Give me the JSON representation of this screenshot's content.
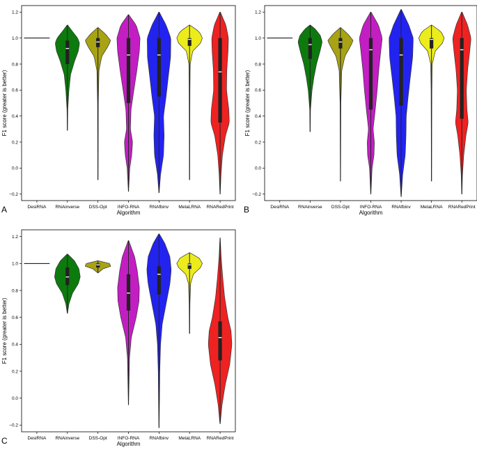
{
  "figure": {
    "panel_labels": [
      "A",
      "B",
      "C"
    ]
  },
  "chart_data": [
    {
      "type": "violin",
      "panel": "A",
      "xlabel": "Algorithm",
      "ylabel": "F1 score (greater is better)",
      "ylim": [
        -0.25,
        1.25
      ],
      "yticks": [
        -0.2,
        0.0,
        0.2,
        0.4,
        0.6,
        0.8,
        1.0,
        1.2
      ],
      "ytick_labels": [
        "−0.2",
        "0.0",
        "0.2",
        "0.4",
        "0.6",
        "0.8",
        "1.0",
        "1.2"
      ],
      "categories": [
        "DesiRNA",
        "RNAinverse",
        "DSS-Opt",
        "INFO-RNA",
        "RNAfbinv",
        "MetaLRNA",
        "RNARedPrint"
      ],
      "colors": [
        "#000000",
        "#0d7a0d",
        "#a8a313",
        "#c31ec3",
        "#2323f0",
        "#ecec1c",
        "#ef2222"
      ],
      "violins": [
        {
          "min": 1.0,
          "max": 1.0,
          "q1": 1.0,
          "median": 1.0,
          "q3": 1.0,
          "degenerate": true
        },
        {
          "min": 0.29,
          "max": 1.1,
          "q1": 0.8,
          "median": 0.92,
          "q3": 0.98,
          "density": [
            [
              0.29,
              0.01
            ],
            [
              0.45,
              0.03
            ],
            [
              0.6,
              0.12
            ],
            [
              0.72,
              0.25
            ],
            [
              0.82,
              0.55
            ],
            [
              0.9,
              0.85
            ],
            [
              0.96,
              0.95
            ],
            [
              1.0,
              0.8
            ],
            [
              1.05,
              0.4
            ],
            [
              1.1,
              0.02
            ]
          ]
        },
        {
          "min": -0.09,
          "max": 1.08,
          "q1": 0.93,
          "median": 0.97,
          "q3": 1.0,
          "density": [
            [
              -0.09,
              0.01
            ],
            [
              0.2,
              0.02
            ],
            [
              0.5,
              0.03
            ],
            [
              0.75,
              0.08
            ],
            [
              0.86,
              0.3
            ],
            [
              0.93,
              0.75
            ],
            [
              0.98,
              1.0
            ],
            [
              1.03,
              0.6
            ],
            [
              1.08,
              0.03
            ]
          ]
        },
        {
          "min": -0.18,
          "max": 1.18,
          "q1": 0.5,
          "median": 0.87,
          "q3": 1.0,
          "density": [
            [
              -0.18,
              0.01
            ],
            [
              0.0,
              0.1
            ],
            [
              0.1,
              0.25
            ],
            [
              0.2,
              0.32
            ],
            [
              0.3,
              0.15
            ],
            [
              0.45,
              0.2
            ],
            [
              0.6,
              0.42
            ],
            [
              0.75,
              0.65
            ],
            [
              0.9,
              0.85
            ],
            [
              1.0,
              0.9
            ],
            [
              1.1,
              0.6
            ],
            [
              1.18,
              0.02
            ]
          ]
        },
        {
          "min": -0.19,
          "max": 1.2,
          "q1": 0.55,
          "median": 0.87,
          "q3": 1.0,
          "density": [
            [
              -0.19,
              0.01
            ],
            [
              -0.05,
              0.12
            ],
            [
              0.1,
              0.35
            ],
            [
              0.25,
              0.4
            ],
            [
              0.4,
              0.35
            ],
            [
              0.55,
              0.55
            ],
            [
              0.7,
              0.72
            ],
            [
              0.85,
              0.9
            ],
            [
              1.0,
              0.92
            ],
            [
              1.1,
              0.55
            ],
            [
              1.2,
              0.02
            ]
          ]
        },
        {
          "min": -0.09,
          "max": 1.1,
          "q1": 0.94,
          "median": 0.99,
          "q3": 1.0,
          "density": [
            [
              -0.09,
              0.01
            ],
            [
              0.3,
              0.02
            ],
            [
              0.6,
              0.03
            ],
            [
              0.8,
              0.05
            ],
            [
              0.9,
              0.25
            ],
            [
              0.96,
              0.85
            ],
            [
              1.0,
              1.0
            ],
            [
              1.05,
              0.75
            ],
            [
              1.1,
              0.02
            ]
          ]
        },
        {
          "min": -0.2,
          "max": 1.2,
          "q1": 0.35,
          "median": 0.74,
          "q3": 1.0,
          "density": [
            [
              -0.2,
              0.01
            ],
            [
              -0.05,
              0.07
            ],
            [
              0.1,
              0.18
            ],
            [
              0.25,
              0.42
            ],
            [
              0.35,
              0.72
            ],
            [
              0.45,
              0.68
            ],
            [
              0.6,
              0.5
            ],
            [
              0.75,
              0.52
            ],
            [
              0.9,
              0.62
            ],
            [
              1.0,
              0.65
            ],
            [
              1.1,
              0.45
            ],
            [
              1.2,
              0.02
            ]
          ]
        }
      ]
    },
    {
      "type": "violin",
      "panel": "B",
      "xlabel": "Algorithm",
      "ylabel": "F1 score (greater is better)",
      "ylim": [
        -0.25,
        1.25
      ],
      "yticks": [
        -0.2,
        0.0,
        0.2,
        0.4,
        0.6,
        0.8,
        1.0,
        1.2
      ],
      "ytick_labels": [
        "−0.2",
        "0.0",
        "0.2",
        "0.4",
        "0.6",
        "0.8",
        "1.0",
        "1.2"
      ],
      "categories": [
        "DesiRNA",
        "RNAinverse",
        "DSS-Opt",
        "INFO-RNA",
        "RNAfbinv",
        "MetaLRNA",
        "RNARedPrint"
      ],
      "colors": [
        "#000000",
        "#0d7a0d",
        "#a8a313",
        "#c31ec3",
        "#2323f0",
        "#ecec1c",
        "#ef2222"
      ],
      "violins": [
        {
          "min": 1.0,
          "max": 1.0,
          "q1": 1.0,
          "median": 1.0,
          "q3": 1.0,
          "degenerate": true
        },
        {
          "min": 0.28,
          "max": 1.1,
          "q1": 0.84,
          "median": 0.95,
          "q3": 1.0,
          "density": [
            [
              0.28,
              0.01
            ],
            [
              0.45,
              0.03
            ],
            [
              0.6,
              0.15
            ],
            [
              0.7,
              0.3
            ],
            [
              0.8,
              0.5
            ],
            [
              0.9,
              0.78
            ],
            [
              0.97,
              0.95
            ],
            [
              1.02,
              0.8
            ],
            [
              1.07,
              0.4
            ],
            [
              1.1,
              0.02
            ]
          ]
        },
        {
          "min": -0.1,
          "max": 1.08,
          "q1": 0.92,
          "median": 0.97,
          "q3": 1.0,
          "density": [
            [
              -0.1,
              0.01
            ],
            [
              0.2,
              0.02
            ],
            [
              0.5,
              0.03
            ],
            [
              0.75,
              0.1
            ],
            [
              0.86,
              0.35
            ],
            [
              0.93,
              0.75
            ],
            [
              0.98,
              1.0
            ],
            [
              1.03,
              0.6
            ],
            [
              1.08,
              0.03
            ]
          ]
        },
        {
          "min": -0.2,
          "max": 1.2,
          "q1": 0.45,
          "median": 0.91,
          "q3": 1.0,
          "density": [
            [
              -0.2,
              0.01
            ],
            [
              0.0,
              0.1
            ],
            [
              0.1,
              0.25
            ],
            [
              0.2,
              0.28
            ],
            [
              0.3,
              0.18
            ],
            [
              0.45,
              0.35
            ],
            [
              0.6,
              0.5
            ],
            [
              0.75,
              0.62
            ],
            [
              0.9,
              0.78
            ],
            [
              1.0,
              0.9
            ],
            [
              1.1,
              0.6
            ],
            [
              1.2,
              0.02
            ]
          ]
        },
        {
          "min": -0.22,
          "max": 1.22,
          "q1": 0.48,
          "median": 0.87,
          "q3": 1.0,
          "density": [
            [
              -0.22,
              0.01
            ],
            [
              -0.05,
              0.12
            ],
            [
              0.1,
              0.32
            ],
            [
              0.25,
              0.38
            ],
            [
              0.4,
              0.4
            ],
            [
              0.55,
              0.55
            ],
            [
              0.7,
              0.72
            ],
            [
              0.85,
              0.9
            ],
            [
              1.0,
              0.95
            ],
            [
              1.1,
              0.6
            ],
            [
              1.22,
              0.02
            ]
          ]
        },
        {
          "min": -0.1,
          "max": 1.1,
          "q1": 0.92,
          "median": 0.99,
          "q3": 1.0,
          "density": [
            [
              -0.1,
              0.01
            ],
            [
              0.3,
              0.02
            ],
            [
              0.6,
              0.03
            ],
            [
              0.8,
              0.06
            ],
            [
              0.9,
              0.3
            ],
            [
              0.96,
              0.85
            ],
            [
              1.0,
              1.0
            ],
            [
              1.05,
              0.75
            ],
            [
              1.1,
              0.02
            ]
          ]
        },
        {
          "min": -0.2,
          "max": 1.2,
          "q1": 0.38,
          "median": 0.91,
          "q3": 1.0,
          "density": [
            [
              -0.2,
              0.01
            ],
            [
              -0.05,
              0.05
            ],
            [
              0.1,
              0.15
            ],
            [
              0.25,
              0.32
            ],
            [
              0.35,
              0.5
            ],
            [
              0.45,
              0.4
            ],
            [
              0.6,
              0.35
            ],
            [
              0.75,
              0.45
            ],
            [
              0.9,
              0.62
            ],
            [
              1.0,
              0.72
            ],
            [
              1.1,
              0.45
            ],
            [
              1.2,
              0.02
            ]
          ]
        }
      ]
    },
    {
      "type": "violin",
      "panel": "C",
      "xlabel": "Algorithm",
      "ylabel": "F1 score (greater is better)",
      "ylim": [
        -0.25,
        1.25
      ],
      "yticks": [
        -0.2,
        0.0,
        0.2,
        0.4,
        0.6,
        0.8,
        1.0,
        1.2
      ],
      "ytick_labels": [
        "−0.2",
        "0.0",
        "0.2",
        "0.4",
        "0.6",
        "0.8",
        "1.0",
        "1.2"
      ],
      "categories": [
        "DesiRNA",
        "RNAinverse",
        "DSS-Opt",
        "INFO-RNA",
        "RNAfbinv",
        "MetaLRNA",
        "RNARedPrint"
      ],
      "colors": [
        "#000000",
        "#0d7a0d",
        "#a8a313",
        "#c31ec3",
        "#2323f0",
        "#ecec1c",
        "#ef2222"
      ],
      "violins": [
        {
          "min": 1.0,
          "max": 1.0,
          "q1": 1.0,
          "median": 1.0,
          "q3": 1.0,
          "degenerate": true
        },
        {
          "min": 0.63,
          "max": 1.07,
          "q1": 0.84,
          "median": 0.9,
          "q3": 0.97,
          "density": [
            [
              0.63,
              0.01
            ],
            [
              0.7,
              0.12
            ],
            [
              0.78,
              0.4
            ],
            [
              0.85,
              0.85
            ],
            [
              0.9,
              1.0
            ],
            [
              0.96,
              0.9
            ],
            [
              1.02,
              0.55
            ],
            [
              1.07,
              0.02
            ]
          ]
        },
        {
          "min": 0.93,
          "max": 1.02,
          "q1": 0.97,
          "median": 0.99,
          "q3": 1.0,
          "density": [
            [
              0.93,
              0.01
            ],
            [
              0.96,
              0.4
            ],
            [
              0.98,
              1.0
            ],
            [
              1.0,
              0.9
            ],
            [
              1.02,
              0.05
            ]
          ]
        },
        {
          "min": -0.05,
          "max": 1.17,
          "q1": 0.65,
          "median": 0.78,
          "q3": 0.92,
          "density": [
            [
              -0.05,
              0.01
            ],
            [
              0.1,
              0.04
            ],
            [
              0.3,
              0.08
            ],
            [
              0.45,
              0.22
            ],
            [
              0.6,
              0.6
            ],
            [
              0.72,
              0.82
            ],
            [
              0.82,
              0.85
            ],
            [
              0.95,
              0.68
            ],
            [
              1.05,
              0.48
            ],
            [
              1.17,
              0.02
            ]
          ]
        },
        {
          "min": -0.22,
          "max": 1.22,
          "q1": 0.77,
          "median": 0.92,
          "q3": 0.98,
          "density": [
            [
              -0.22,
              0.01
            ],
            [
              0.0,
              0.04
            ],
            [
              0.2,
              0.06
            ],
            [
              0.4,
              0.12
            ],
            [
              0.55,
              0.25
            ],
            [
              0.7,
              0.55
            ],
            [
              0.85,
              0.85
            ],
            [
              0.95,
              0.95
            ],
            [
              1.05,
              0.85
            ],
            [
              1.15,
              0.45
            ],
            [
              1.22,
              0.02
            ]
          ]
        },
        {
          "min": 0.48,
          "max": 1.08,
          "q1": 0.96,
          "median": 0.99,
          "q3": 1.0,
          "density": [
            [
              0.48,
              0.01
            ],
            [
              0.7,
              0.03
            ],
            [
              0.85,
              0.08
            ],
            [
              0.92,
              0.3
            ],
            [
              0.97,
              0.85
            ],
            [
              1.0,
              1.0
            ],
            [
              1.04,
              0.75
            ],
            [
              1.08,
              0.02
            ]
          ]
        },
        {
          "min": -0.19,
          "max": 1.19,
          "q1": 0.28,
          "median": 0.45,
          "q3": 0.57,
          "density": [
            [
              -0.19,
              0.01
            ],
            [
              -0.05,
              0.15
            ],
            [
              0.1,
              0.4
            ],
            [
              0.25,
              0.75
            ],
            [
              0.4,
              0.92
            ],
            [
              0.5,
              0.85
            ],
            [
              0.6,
              0.6
            ],
            [
              0.75,
              0.35
            ],
            [
              0.9,
              0.2
            ],
            [
              1.05,
              0.08
            ],
            [
              1.19,
              0.01
            ]
          ]
        }
      ]
    }
  ]
}
